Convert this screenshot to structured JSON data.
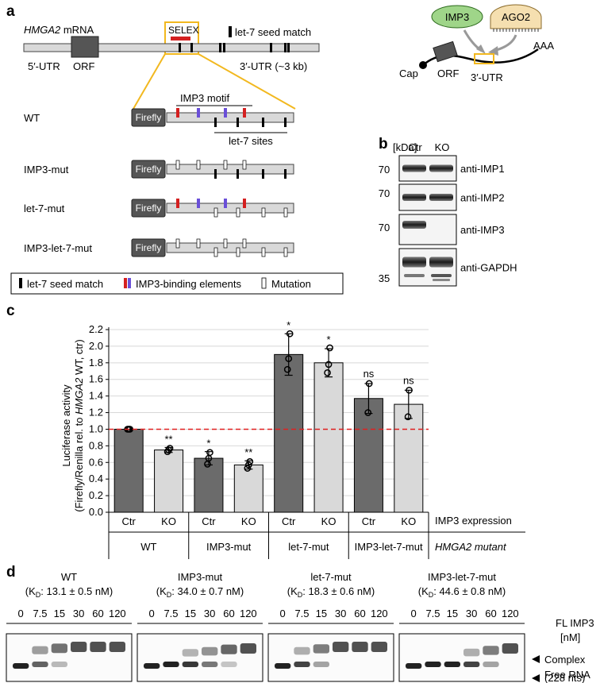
{
  "panel_a": {
    "letter": "a",
    "mrna_gene": "HMGA2",
    "mrna_suffix": " mRNA",
    "selex": "SELEX",
    "let7_legend_top": "let-7 seed match",
    "utr5": "5′-UTR",
    "orf": "ORF",
    "utr3": "3′-UTR (~3 kb)",
    "imp3_motif": "IMP3 motif",
    "let7_sites": "let-7 sites",
    "firefly": "Firefly",
    "constructs": [
      "WT",
      "IMP3-mut",
      "let-7-mut",
      "IMP3-let-7-mut"
    ],
    "legend": [
      "let-7 seed match",
      "IMP3-binding elements",
      "Mutation"
    ],
    "diagram": {
      "imp3": "IMP3",
      "ago2": "AGO2",
      "cap": "Cap",
      "orf": "ORF",
      "utr3": "3′-UTR",
      "polya": "AAA"
    }
  },
  "panel_b": {
    "letter": "b",
    "kda": "[kDa]",
    "lanes": [
      "Ctr",
      "KO"
    ],
    "blots": [
      {
        "marker": "70",
        "antibody": "anti-IMP1"
      },
      {
        "marker": "70",
        "antibody": "anti-IMP2"
      },
      {
        "marker": "70",
        "antibody": "anti-IMP3"
      },
      {
        "marker": "35",
        "antibody": "anti-GAPDH"
      }
    ]
  },
  "panel_d": {
    "letter": "d",
    "gels": [
      {
        "title": "WT",
        "kd": "13.1 ± 0.5 nM"
      },
      {
        "title": "IMP3-mut",
        "kd": "34.0 ± 0.7 nM"
      },
      {
        "title": "let-7-mut",
        "kd": "18.3 ± 0.6 nM"
      },
      {
        "title": "IMP3-let-7-mut",
        "kd": "44.6 ± 0.8 nM"
      }
    ],
    "kd_prefix": "(K",
    "kd_sub": "D",
    "concentrations": [
      "0",
      "7.5",
      "15",
      "30",
      "60",
      "120"
    ],
    "fl_imp3": "FL IMP3",
    "unit": "[nM]",
    "complex": "Complex",
    "free_rna": "Free RNA",
    "free_rna_len": "(228 nts)"
  },
  "chart_data": {
    "type": "bar",
    "panel_letter": "c",
    "ylabel_line1": "Luciferase activity",
    "ylabel_line2_pre": "(Firefly/Renilla rel. to ",
    "ylabel_line2_gene": "HMGA2",
    "ylabel_line2_post": " WT, ctr)",
    "ylim": [
      0,
      2.2
    ],
    "yticks": [
      "0.0",
      "0.2",
      "0.4",
      "0.6",
      "0.8",
      "1.0",
      "1.2",
      "1.4",
      "1.6",
      "1.8",
      "2.0",
      "2.2"
    ],
    "reference_line": 1.0,
    "colors": {
      "Ctr": "#6b6b6b",
      "KO": "#d9d9d9",
      "reference": "#e02020"
    },
    "groups": [
      "WT",
      "IMP3-mut",
      "let-7-mut",
      "IMP3-let-7-mut"
    ],
    "group_axis_label": "HMGA2 mutant",
    "condition_axis_label": "IMP3 expression",
    "bars": [
      {
        "group": "WT",
        "condition": "Ctr",
        "value": 1.0,
        "error": 0.0,
        "points": [
          1.0,
          1.0,
          1.0
        ],
        "sig": ""
      },
      {
        "group": "WT",
        "condition": "KO",
        "value": 0.75,
        "error": 0.03,
        "points": [
          0.73,
          0.75,
          0.77
        ],
        "sig": "**"
      },
      {
        "group": "IMP3-mut",
        "condition": "Ctr",
        "value": 0.65,
        "error": 0.08,
        "points": [
          0.58,
          0.65,
          0.72
        ],
        "sig": "*"
      },
      {
        "group": "IMP3-mut",
        "condition": "KO",
        "value": 0.57,
        "error": 0.05,
        "points": [
          0.53,
          0.57,
          0.61
        ],
        "sig": "**"
      },
      {
        "group": "let-7-mut",
        "condition": "Ctr",
        "value": 1.9,
        "error": 0.25,
        "points": [
          1.72,
          1.85,
          2.15
        ],
        "sig": "*"
      },
      {
        "group": "let-7-mut",
        "condition": "KO",
        "value": 1.8,
        "error": 0.17,
        "points": [
          1.68,
          1.78,
          1.98
        ],
        "sig": "*"
      },
      {
        "group": "IMP3-let-7-mut",
        "condition": "Ctr",
        "value": 1.37,
        "error": 0.18,
        "points": [
          1.2,
          1.55
        ],
        "sig": "ns"
      },
      {
        "group": "IMP3-let-7-mut",
        "condition": "KO",
        "value": 1.3,
        "error": 0.17,
        "points": [
          1.15,
          1.47
        ],
        "sig": "ns"
      }
    ]
  }
}
